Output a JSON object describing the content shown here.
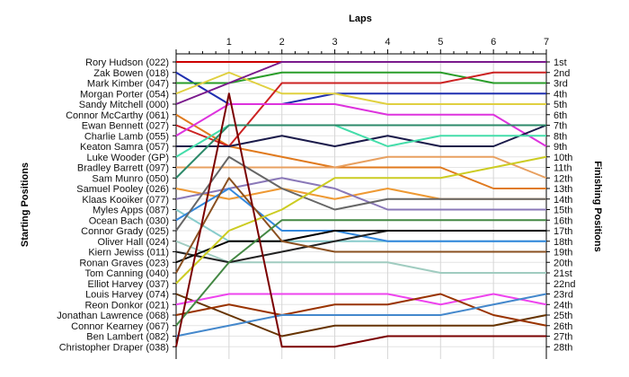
{
  "chart_data": {
    "type": "line",
    "title": "Laps",
    "xlabel": "Laps",
    "ylabel_left": "Starting Positions",
    "ylabel_right": "Finishing Positions",
    "x_ticks": [
      "1",
      "2",
      "3",
      "4",
      "5",
      "6",
      "7"
    ],
    "x_range": [
      0,
      7
    ],
    "y_range": [
      1,
      28
    ],
    "y_inverted": true,
    "grid": true,
    "starting_labels": [
      "Rory Hudson (022)",
      "Zak Bowen (018)",
      "Mark Kimber (047)",
      "Morgan Porter (054)",
      "Sandy Mitchell (000)",
      "Connor McCarthy (061)",
      "Ewan Bennett (027)",
      "Charlie Lamb (055)",
      "Keaton Samra (057)",
      "Luke Wooder (GP)",
      "Bradley Barrett (097)",
      "Sam Munro (050)",
      "Samuel Pooley (026)",
      "Klaas Kooiker (077)",
      "Myles Apps (087)",
      "Ocean Bach (030)",
      "Connor Grady (025)",
      "Oliver Hall (024)",
      "Kiern Jewiss (011)",
      "Ronan Graves (023)",
      "Tom Canning (040)",
      "Elliot Harvey (037)",
      "Louis Harvey (074)",
      "Reon Donkor (021)",
      "Jonathan Lawrence (068)",
      "Connor Kearney (067)",
      "Ben Lambert (082)",
      "Christopher Draper (038)"
    ],
    "finishing_labels": [
      "1st",
      "2nd",
      "3rd",
      "4th",
      "5th",
      "6th",
      "7th",
      "8th",
      "9th",
      "10th",
      "11th",
      "12th",
      "13th",
      "14th",
      "15th",
      "16th",
      "17th",
      "18th",
      "19th",
      "20th",
      "21st",
      "22nd",
      "23rd",
      "24th",
      "25th",
      "26th",
      "27th",
      "28th"
    ],
    "series": [
      {
        "color": "#cc0000",
        "values": [
          1,
          1,
          1,
          1,
          1,
          1,
          1,
          1
        ]
      },
      {
        "color": "#1f2fb0",
        "values": [
          2,
          5,
          5,
          4,
          4,
          4,
          4,
          4
        ]
      },
      {
        "color": "#2a9d2a",
        "values": [
          3,
          3,
          2,
          2,
          2,
          2,
          3,
          3
        ]
      },
      {
        "color": "#e0d040",
        "values": [
          4,
          2,
          4,
          4,
          5,
          5,
          5,
          5
        ]
      },
      {
        "color": "#7a1a8c",
        "values": [
          5,
          3,
          1,
          1,
          1,
          1,
          1,
          1
        ]
      },
      {
        "color": "#e07a1e",
        "values": [
          6,
          9,
          10,
          11,
          11,
          11,
          13,
          13
        ]
      },
      {
        "color": "#cc2222",
        "values": [
          7,
          9,
          3,
          3,
          3,
          3,
          2,
          2
        ]
      },
      {
        "color": "#dd33dd",
        "values": [
          8,
          5,
          5,
          5,
          6,
          6,
          6,
          9
        ]
      },
      {
        "color": "#1a1a4a",
        "values": [
          9,
          9,
          8,
          9,
          8,
          9,
          9,
          7
        ]
      },
      {
        "color": "#44ddaa",
        "values": [
          10,
          7,
          7,
          7,
          9,
          8,
          8,
          8
        ]
      },
      {
        "color": "#e8a060",
        "values": [
          11,
          11,
          11,
          11,
          10,
          10,
          10,
          12
        ]
      },
      {
        "color": "#2d8a6a",
        "values": [
          12,
          7,
          7,
          7,
          7,
          7,
          7,
          7
        ]
      },
      {
        "color": "#ee9933",
        "values": [
          13,
          14,
          13,
          14,
          13,
          14,
          14,
          14
        ]
      },
      {
        "color": "#8a78b8",
        "values": [
          14,
          13,
          12,
          13,
          15,
          15,
          15,
          15
        ]
      },
      {
        "color": "#88cccc",
        "values": [
          15,
          18,
          18,
          18,
          18,
          18,
          18,
          18
        ]
      },
      {
        "color": "#3388dd",
        "values": [
          16,
          13,
          17,
          17,
          18,
          18,
          18,
          18
        ]
      },
      {
        "color": "#666666",
        "values": [
          17,
          10,
          13,
          15,
          14,
          14,
          14,
          14
        ]
      },
      {
        "color": "#a0ccc0",
        "values": [
          18,
          20,
          20,
          20,
          20,
          21,
          21,
          21
        ]
      },
      {
        "color": "#222222",
        "values": [
          19,
          20,
          19,
          18,
          17,
          17,
          17,
          17
        ]
      },
      {
        "color": "#000000",
        "values": [
          20,
          18,
          18,
          17,
          17,
          17,
          17,
          17
        ]
      },
      {
        "color": "#8a5020",
        "values": [
          21,
          12,
          18,
          19,
          19,
          19,
          19,
          19
        ]
      },
      {
        "color": "#cccc22",
        "values": [
          22,
          17,
          15,
          12,
          12,
          12,
          11,
          10
        ]
      },
      {
        "color": "#663300",
        "values": [
          23,
          25,
          27,
          26,
          26,
          26,
          26,
          25
        ]
      },
      {
        "color": "#ee44ee",
        "values": [
          24,
          23,
          23,
          23,
          23,
          24,
          23,
          24
        ]
      },
      {
        "color": "#993300",
        "values": [
          25,
          24,
          25,
          24,
          24,
          23,
          25,
          26
        ]
      },
      {
        "color": "#448844",
        "values": [
          26,
          20,
          16,
          16,
          16,
          16,
          16,
          16
        ]
      },
      {
        "color": "#4488cc",
        "values": [
          27,
          26,
          25,
          25,
          25,
          25,
          24,
          23
        ]
      },
      {
        "color": "#7a0000",
        "values": [
          28,
          4,
          28,
          28,
          27,
          27,
          27,
          27
        ]
      }
    ]
  }
}
